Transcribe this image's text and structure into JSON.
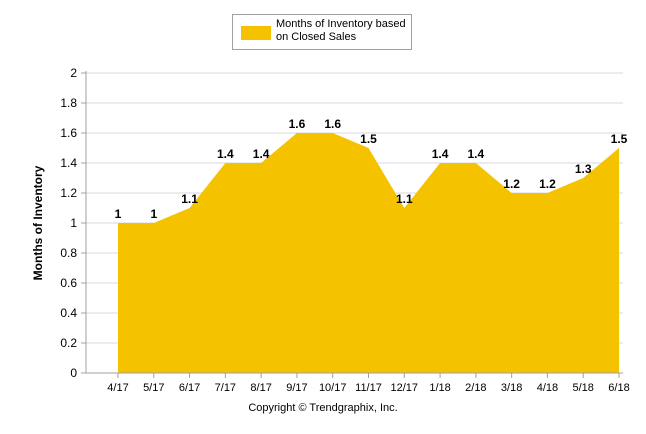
{
  "chart_data": {
    "type": "area",
    "categories": [
      "4/17",
      "5/17",
      "6/17",
      "7/17",
      "8/17",
      "9/17",
      "10/17",
      "11/17",
      "12/17",
      "1/18",
      "2/18",
      "3/18",
      "4/18",
      "5/18",
      "6/18"
    ],
    "series": [
      {
        "name": "Months of Inventory based on Closed Sales",
        "values": [
          1,
          1,
          1.1,
          1.4,
          1.4,
          1.6,
          1.6,
          1.5,
          1.1,
          1.4,
          1.4,
          1.2,
          1.2,
          1.3,
          1.5
        ]
      }
    ],
    "data_labels": [
      "1",
      "1",
      "1.1",
      "1.4",
      "1.4",
      "1.6",
      "1.6",
      "1.5",
      "1.1",
      "1.4",
      "1.4",
      "1.2",
      "1.2",
      "1.3",
      "1.5"
    ],
    "ylabel": "Months of Inventory",
    "xlabel": "",
    "ylim": [
      0,
      2
    ],
    "yticks": [
      "0",
      "0.2",
      "0.4",
      "0.6",
      "0.8",
      "1",
      "1.2",
      "1.4",
      "1.6",
      "1.8",
      "2"
    ],
    "grid": true,
    "legend_position": "top",
    "fill_color": "#F5C200",
    "footer": "Copyright © Trendgraphix, Inc."
  }
}
